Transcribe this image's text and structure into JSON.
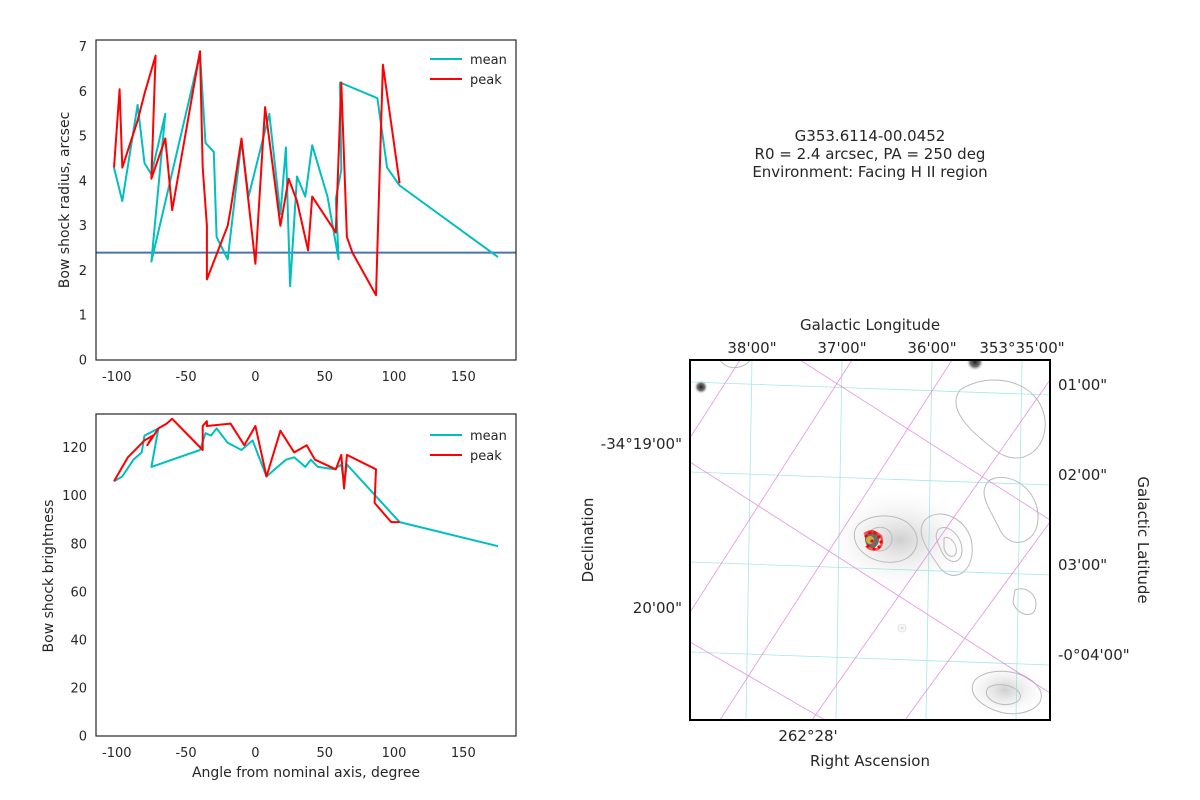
{
  "colors": {
    "mean": "#00bfbf",
    "peak": "#ff0000",
    "r0_line": "#4c72b0",
    "ra_dec_grid": "#7fdfdf",
    "galactic_grid": "#e07be0"
  },
  "info": {
    "line1": "G353.6114-00.0452",
    "line2": "R0 = 2.4 arcsec, PA = 250 deg",
    "line3": "Environment: Facing H II region"
  },
  "sky_map": {
    "top_label": "Galactic Longitude",
    "top_ticks": [
      "38'00\"",
      "37'00\"",
      "36'00\"",
      "353°35'00\""
    ],
    "left_label": "Declination",
    "left_ticks": [
      "-34°19'00\"",
      "20'00\""
    ],
    "right_label": "Galactic Latitude",
    "right_ticks": [
      "01'00\"",
      "02'00\"",
      "03'00\"",
      "-0°04'00\""
    ],
    "bottom_label": "Right Ascension",
    "bottom_ticks": [
      "262°28'"
    ]
  },
  "chart_data": [
    {
      "type": "line",
      "xlabel": "",
      "ylabel": "Bow shock radius, arcsec",
      "xlim": [
        -115,
        188
      ],
      "ylim": [
        0,
        7.15
      ],
      "xticks": [
        -100,
        -50,
        0,
        50,
        100,
        150
      ],
      "yticks": [
        0,
        1,
        2,
        3,
        4,
        5,
        6,
        7
      ],
      "grid": false,
      "legend": "top-right",
      "hline": 2.4,
      "series": [
        {
          "name": "mean",
          "points": [
            [
              -102,
              4.3
            ],
            [
              -96,
              3.55
            ],
            [
              -85,
              5.7
            ],
            [
              -80,
              4.4
            ],
            [
              -75,
              4.15
            ],
            [
              -65,
              5.5
            ],
            [
              -75,
              2.2
            ],
            [
              -40,
              6.85
            ],
            [
              -36,
              4.85
            ],
            [
              -30,
              4.65
            ],
            [
              -28,
              2.75
            ],
            [
              -20,
              2.25
            ],
            [
              -10,
              4.9
            ],
            [
              -5,
              3.65
            ],
            [
              10,
              5.5
            ],
            [
              18,
              3.25
            ],
            [
              22,
              4.75
            ],
            [
              25,
              1.65
            ],
            [
              30,
              4.1
            ],
            [
              36,
              3.65
            ],
            [
              41,
              4.8
            ],
            [
              52,
              3.65
            ],
            [
              60,
              2.25
            ],
            [
              58,
              3.6
            ],
            [
              62,
              4.25
            ],
            [
              61,
              6.2
            ],
            [
              88,
              5.85
            ],
            [
              95,
              4.3
            ],
            [
              104,
              3.9
            ],
            [
              175,
              2.3
            ]
          ]
        },
        {
          "name": "peak",
          "points": [
            [
              -102,
              4.3
            ],
            [
              -98,
              6.05
            ],
            [
              -96,
              4.3
            ],
            [
              -85,
              5.35
            ],
            [
              -80,
              5.95
            ],
            [
              -72,
              6.8
            ],
            [
              -75,
              4.05
            ],
            [
              -65,
              4.95
            ],
            [
              -60,
              3.35
            ],
            [
              -40,
              6.9
            ],
            [
              -38,
              4.3
            ],
            [
              -35,
              3.0
            ],
            [
              -35,
              1.8
            ],
            [
              -20,
              3.0
            ],
            [
              -18,
              3.35
            ],
            [
              -10,
              4.95
            ],
            [
              0,
              2.15
            ],
            [
              7,
              5.65
            ],
            [
              18,
              3.0
            ],
            [
              24,
              4.05
            ],
            [
              30,
              3.55
            ],
            [
              38,
              2.45
            ],
            [
              41,
              3.65
            ],
            [
              58,
              2.85
            ],
            [
              62,
              6.2
            ],
            [
              66,
              2.75
            ],
            [
              70,
              2.4
            ],
            [
              87,
              1.45
            ],
            [
              92,
              6.6
            ],
            [
              104,
              3.95
            ]
          ]
        }
      ]
    },
    {
      "type": "line",
      "xlabel": "Angle from nominal axis, degree",
      "ylabel": "Bow shock brightness",
      "xlim": [
        -115,
        188
      ],
      "ylim": [
        0,
        134
      ],
      "xticks": [
        -100,
        -50,
        0,
        50,
        100,
        150
      ],
      "yticks": [
        0,
        20,
        40,
        60,
        80,
        100,
        120
      ],
      "grid": false,
      "legend": "top-right",
      "series": [
        {
          "name": "mean",
          "points": [
            [
              -102,
              106
            ],
            [
              -96,
              108
            ],
            [
              -88,
              115
            ],
            [
              -82,
              118
            ],
            [
              -80,
              125
            ],
            [
              -70,
              128
            ],
            [
              -75,
              112
            ],
            [
              -40,
              119
            ],
            [
              -36,
              126
            ],
            [
              -32,
              125
            ],
            [
              -28,
              128
            ],
            [
              -20,
              122
            ],
            [
              -10,
              119
            ],
            [
              -2,
              123
            ],
            [
              8,
              108
            ],
            [
              18,
              113
            ],
            [
              22,
              115
            ],
            [
              28,
              116
            ],
            [
              36,
              112
            ],
            [
              40,
              115
            ],
            [
              45,
              112
            ],
            [
              57,
              111
            ],
            [
              62,
              113
            ],
            [
              64,
              105
            ],
            [
              66,
              113
            ],
            [
              104,
              89
            ],
            [
              175,
              79
            ]
          ]
        },
        {
          "name": "peak",
          "points": [
            [
              -102,
              106
            ],
            [
              -92,
              116
            ],
            [
              -80,
              123
            ],
            [
              -74,
              125
            ],
            [
              -78,
              121
            ],
            [
              -70,
              128
            ],
            [
              -64,
              130
            ],
            [
              -60,
              132
            ],
            [
              -38,
              119
            ],
            [
              -38,
              129
            ],
            [
              -35,
              131
            ],
            [
              -35,
              129
            ],
            [
              -18,
              130
            ],
            [
              -8,
              121
            ],
            [
              0,
              129
            ],
            [
              8,
              108
            ],
            [
              18,
              127
            ],
            [
              28,
              118
            ],
            [
              37,
              121
            ],
            [
              43,
              115
            ],
            [
              58,
              111
            ],
            [
              62,
              117
            ],
            [
              64,
              103
            ],
            [
              66,
              117
            ],
            [
              87,
              111
            ],
            [
              86,
              97
            ],
            [
              98,
              89
            ],
            [
              104,
              89
            ]
          ]
        }
      ]
    }
  ]
}
